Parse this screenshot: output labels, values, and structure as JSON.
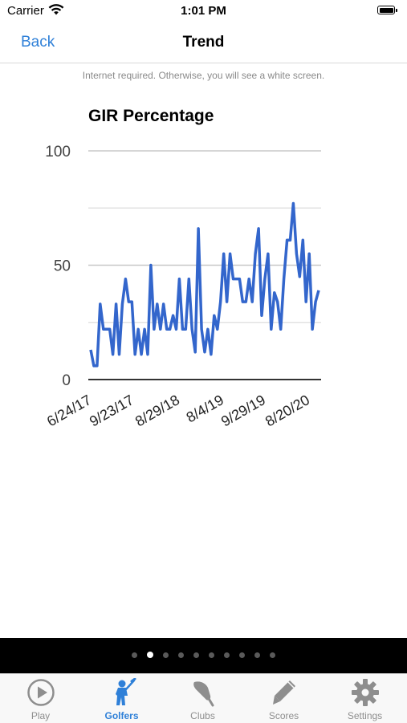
{
  "status": {
    "carrier": "Carrier",
    "time": "1:01 PM"
  },
  "nav": {
    "back_label": "Back",
    "title": "Trend"
  },
  "notice": "Internet required. Otherwise, you will see a white screen.",
  "chart_data": {
    "type": "line",
    "title": "GIR Percentage",
    "ylim": [
      0,
      100
    ],
    "yticks": [
      0,
      50,
      100
    ],
    "grid": true,
    "x_tick_labels": [
      "6/24/17",
      "9/23/17",
      "8/29/18",
      "8/4/19",
      "9/29/19",
      "8/20/20"
    ],
    "series": [
      {
        "color": "#3366cc",
        "values": [
          13,
          6,
          6,
          33,
          22,
          22,
          22,
          11,
          33,
          11,
          33,
          44,
          34,
          34,
          11,
          22,
          11,
          22,
          11,
          50,
          22,
          33,
          22,
          33,
          22,
          22,
          28,
          22,
          44,
          22,
          22,
          44,
          22,
          12,
          66,
          22,
          12,
          22,
          11,
          28,
          22,
          34,
          55,
          34,
          55,
          44,
          44,
          44,
          34,
          34,
          44,
          34,
          55,
          66,
          28,
          44,
          55,
          22,
          38,
          34,
          22,
          44,
          61,
          61,
          77,
          55,
          45,
          61,
          34,
          55,
          22,
          34,
          39
        ]
      }
    ],
    "line_color": "#3366cc"
  },
  "pager": {
    "count": 10,
    "active": 1
  },
  "tabs": [
    {
      "label": "Play",
      "icon": "play-icon",
      "active": false
    },
    {
      "label": "Golfers",
      "icon": "golfer-icon",
      "active": true
    },
    {
      "label": "Clubs",
      "icon": "golf-club-icon",
      "active": false
    },
    {
      "label": "Scores",
      "icon": "pencil-icon",
      "active": false
    },
    {
      "label": "Settings",
      "icon": "gear-icon",
      "active": false
    }
  ],
  "colors": {
    "accent": "#2f80d8",
    "tab_inactive": "#8e8e8e",
    "pager_bg": "#000000"
  }
}
